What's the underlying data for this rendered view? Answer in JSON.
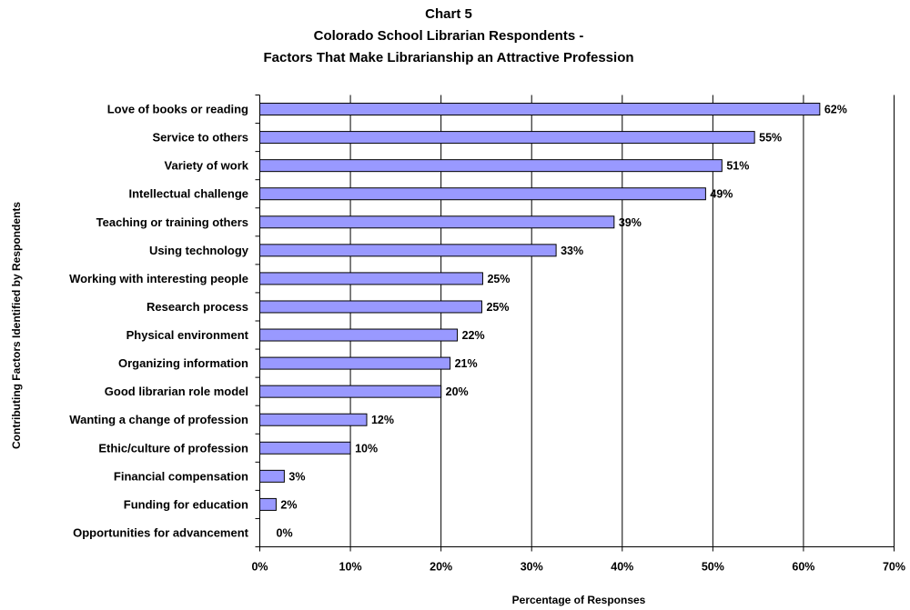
{
  "chart_data": {
    "type": "bar",
    "orientation": "horizontal",
    "title": [
      "Chart 5",
      "Colorado School Librarian Respondents -",
      "Factors That Make Librarianship an Attractive Profession"
    ],
    "xlabel": "Percentage of Responses",
    "ylabel": "Contributing Factors Identified by Respondents",
    "xlim": [
      0,
      70
    ],
    "x_ticks": [
      "0%",
      "10%",
      "20%",
      "30%",
      "40%",
      "50%",
      "60%",
      "70%"
    ],
    "grid": "vertical",
    "bar_color": "#9999ff",
    "categories": [
      "Love of books or reading",
      "Service to others",
      "Variety of work",
      "Intellectual challenge",
      "Teaching or training others",
      "Using technology",
      "Working with interesting people",
      "Research process",
      "Physical environment",
      "Organizing information",
      "Good librarian role model",
      "Wanting a change of profession",
      "Ethic/culture of profession",
      "Financial compensation",
      "Funding for education",
      "Opportunities for advancement"
    ],
    "values": [
      61.8,
      54.6,
      51.0,
      49.2,
      39.1,
      32.7,
      24.6,
      24.5,
      21.8,
      21.0,
      20.0,
      11.8,
      10.0,
      2.7,
      1.8,
      0
    ],
    "data_labels": [
      "62%",
      "55%",
      "51%",
      "49%",
      "39%",
      "33%",
      "25%",
      "25%",
      "22%",
      "21%",
      "20%",
      "12%",
      "10%",
      "3%",
      "2%",
      "0%"
    ]
  }
}
